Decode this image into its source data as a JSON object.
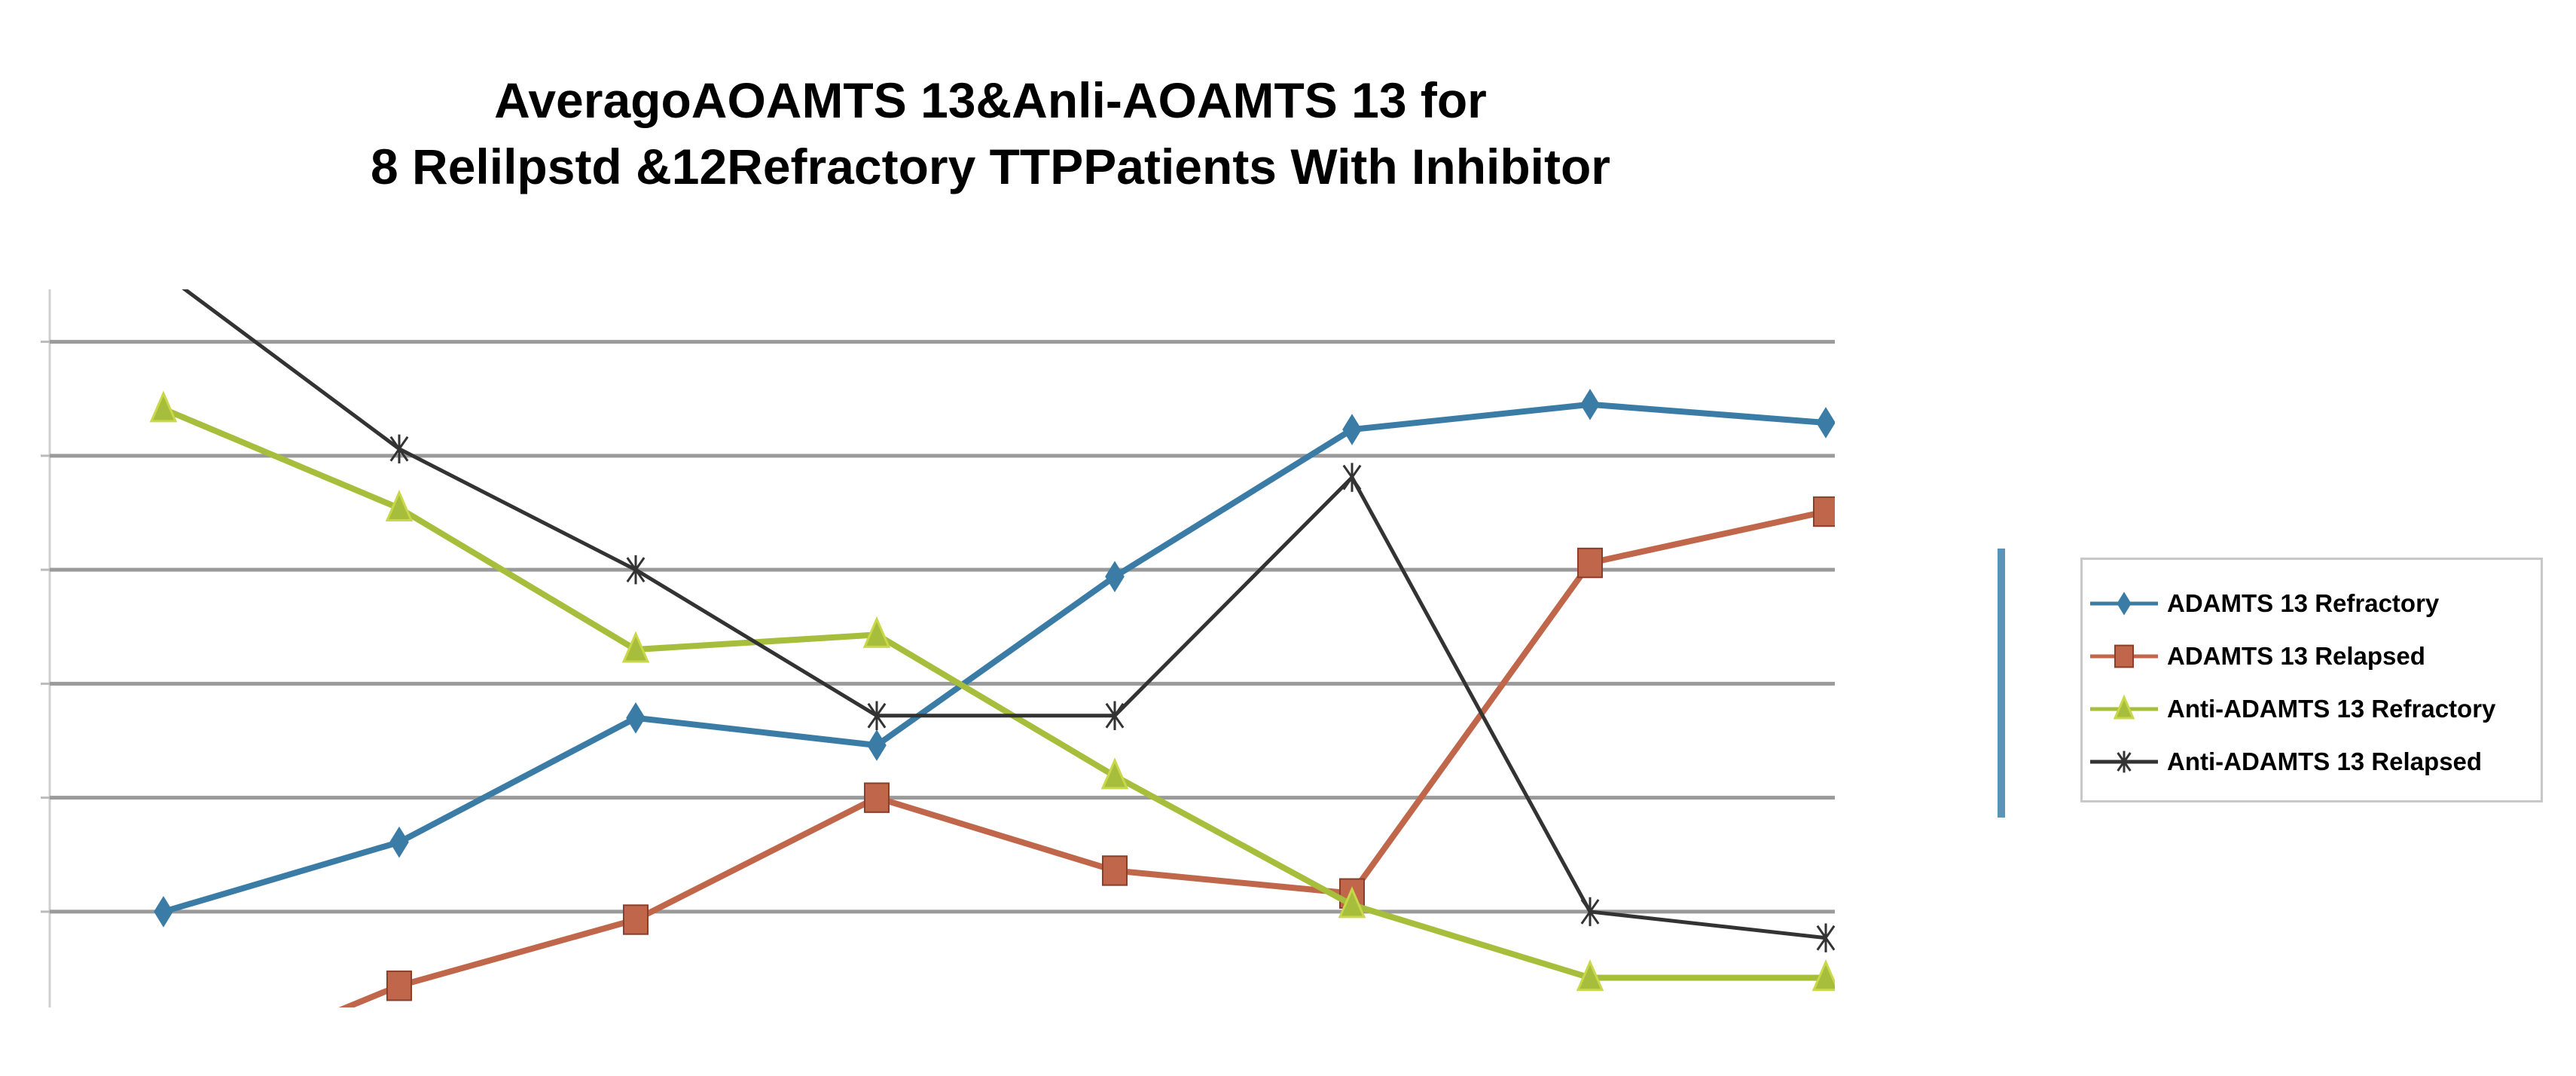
{
  "chart_data": {
    "type": "line",
    "title": [
      "AveragoAOAMTS 13&Anli-AOAMTS 13 for",
      "8 Relilpstd &12Refractory TTPPatients With Inhibitor"
    ],
    "xlabel": "",
    "ylabel": "",
    "x": [
      1,
      2,
      3,
      4,
      5,
      6,
      7,
      8
    ],
    "ylim": [
      -0.84,
      5.46
    ],
    "gridlines": [
      0,
      1,
      2,
      3,
      4,
      5
    ],
    "grid": true,
    "legend_placement": "right",
    "series": [
      {
        "name": "ADAMTS 13 Refractory",
        "color": "#3a7ca5",
        "marker": "diamond",
        "values": [
          0,
          0.61,
          1.7,
          1.46,
          2.94,
          4.23,
          4.45,
          4.29
        ]
      },
      {
        "name": "ADAMTS 13 Relapsed",
        "color": "#c0664a",
        "marker": "square",
        "values": [
          -1.5,
          -0.65,
          -0.07,
          1.0,
          0.36,
          0.16,
          3.06,
          3.51
        ]
      },
      {
        "name": "Anti-ADAMTS 13 Refractory",
        "color": "#a7bd3c",
        "marker": "triangle",
        "values": [
          4.41,
          3.54,
          2.3,
          2.43,
          1.19,
          0.06,
          -0.58,
          -0.58
        ]
      },
      {
        "name": "Anti-ADAMTS 13 Relapsed",
        "color": "#333333",
        "marker": "x",
        "values": [
          5.6,
          4.06,
          3.0,
          1.72,
          1.72,
          3.81,
          0,
          -0.23
        ]
      }
    ]
  }
}
